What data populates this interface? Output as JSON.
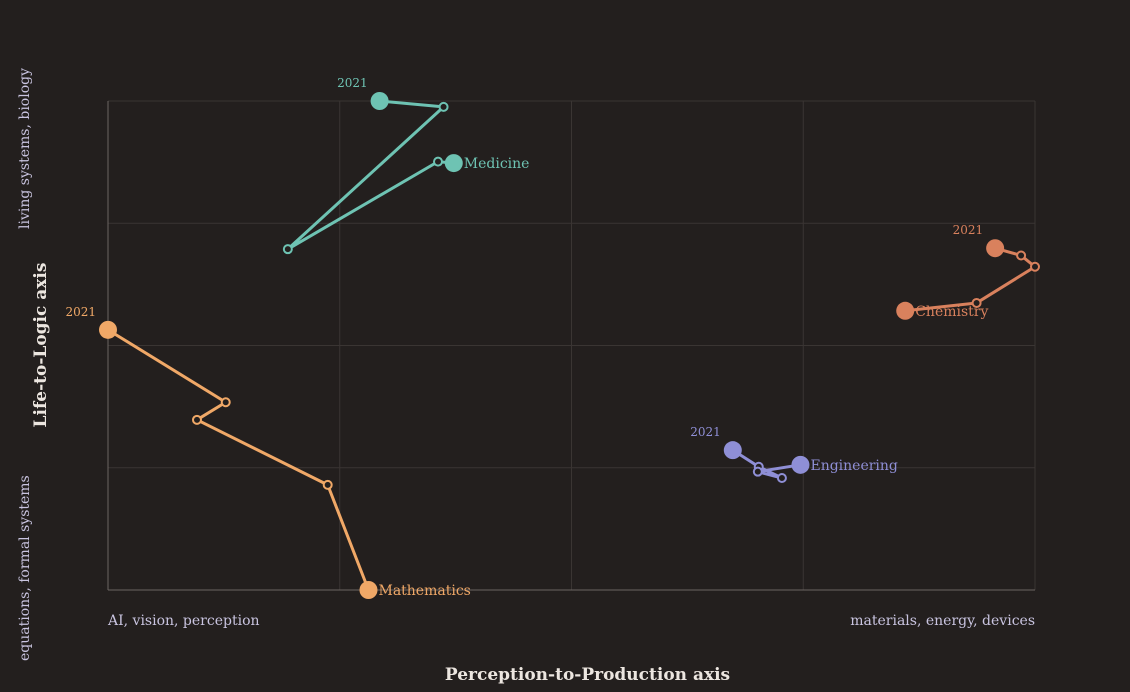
{
  "chart_data": {
    "type": "line",
    "xlabel": "Perception-to-Production axis",
    "ylabel": "Life-to-Logic axis",
    "x_left_label": "AI, vision, perception",
    "x_right_label": "materials, energy, devices",
    "y_bottom_label": "equations, formal systems",
    "y_top_label": "living systems, biology",
    "xlim": [
      0,
      1
    ],
    "ylim": [
      0,
      1
    ],
    "grid": true,
    "colors": {
      "background": "#231f1e",
      "grid": "#3a3533",
      "axis": "#6b6562",
      "tick_text": "#c9c4e0",
      "title_text": "#ece6e0"
    },
    "series": [
      {
        "name": "Medicine",
        "color": "#6ec3b3",
        "start_label": "2021",
        "points": [
          {
            "x": 0.293,
            "y": 1.0
          },
          {
            "x": 0.362,
            "y": 0.988
          },
          {
            "x": 0.194,
            "y": 0.697
          },
          {
            "x": 0.356,
            "y": 0.876
          },
          {
            "x": 0.373,
            "y": 0.873
          }
        ]
      },
      {
        "name": "Chemistry",
        "color": "#d9815d",
        "start_label": "2021",
        "points": [
          {
            "x": 0.957,
            "y": 0.699
          },
          {
            "x": 0.985,
            "y": 0.684
          },
          {
            "x": 1.0,
            "y": 0.661
          },
          {
            "x": 0.937,
            "y": 0.587
          },
          {
            "x": 0.86,
            "y": 0.571
          }
        ]
      },
      {
        "name": "Mathematics",
        "color": "#f0a867",
        "start_label": "2021",
        "points": [
          {
            "x": 0.0,
            "y": 0.532
          },
          {
            "x": 0.127,
            "y": 0.384
          },
          {
            "x": 0.096,
            "y": 0.348
          },
          {
            "x": 0.237,
            "y": 0.215
          },
          {
            "x": 0.281,
            "y": 0.0
          }
        ]
      },
      {
        "name": "Engineering",
        "color": "#8f8fd6",
        "start_label": "2021",
        "points": [
          {
            "x": 0.674,
            "y": 0.286
          },
          {
            "x": 0.702,
            "y": 0.252
          },
          {
            "x": 0.727,
            "y": 0.229
          },
          {
            "x": 0.701,
            "y": 0.242
          },
          {
            "x": 0.747,
            "y": 0.256
          }
        ]
      }
    ]
  }
}
